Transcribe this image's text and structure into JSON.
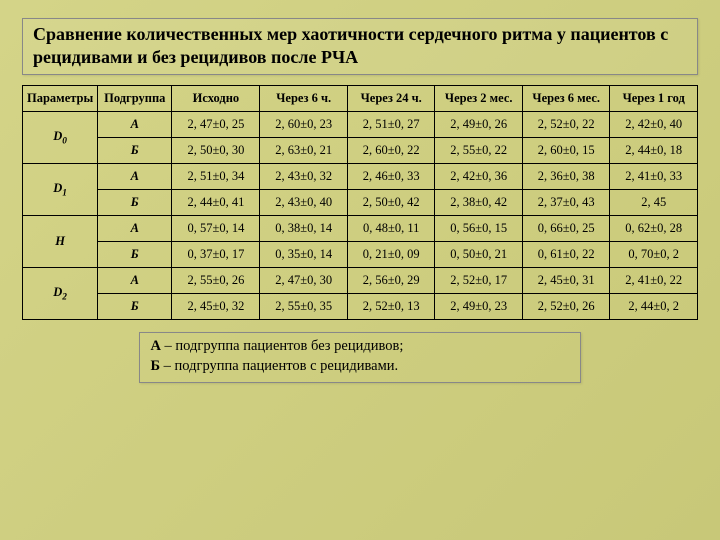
{
  "title": "Сравнение количественных мер хаотичности сердечного ритма у пациентов с рецидивами и без рецидивов после РЧА",
  "columns": [
    "Параметры",
    "Подгруппа",
    "Исходно",
    "Через 6 ч.",
    "Через 24 ч.",
    "Через 2 мес.",
    "Через 6 мес.",
    "Через 1 год"
  ],
  "params": [
    {
      "name": "D",
      "sub": "0",
      "groups": [
        {
          "g": "А",
          "v": [
            "2, 47±0, 25",
            "2, 60±0, 23",
            "2, 51±0, 27",
            "2, 49±0, 26",
            "2, 52±0, 22",
            "2, 42±0, 40"
          ]
        },
        {
          "g": "Б",
          "v": [
            "2, 50±0, 30",
            "2, 63±0, 21",
            "2, 60±0, 22",
            "2, 55±0, 22",
            "2, 60±0, 15",
            "2, 44±0, 18"
          ]
        }
      ]
    },
    {
      "name": "D",
      "sub": "1",
      "groups": [
        {
          "g": "А",
          "v": [
            "2, 51±0, 34",
            "2, 43±0, 32",
            "2, 46±0, 33",
            "2, 42±0, 36",
            "2, 36±0, 38",
            "2, 41±0, 33"
          ]
        },
        {
          "g": "Б",
          "v": [
            "2, 44±0, 41",
            "2, 43±0, 40",
            "2, 50±0, 42",
            "2, 38±0, 42",
            "2, 37±0, 43",
            "2, 45"
          ]
        }
      ]
    },
    {
      "name": "H",
      "sub": "",
      "groups": [
        {
          "g": "А",
          "v": [
            "0, 57±0, 14",
            "0, 38±0, 14",
            "0, 48±0, 11",
            "0, 56±0, 15",
            "0, 66±0, 25",
            "0, 62±0, 28"
          ]
        },
        {
          "g": "Б",
          "v": [
            "0, 37±0, 17",
            "0, 35±0, 14",
            "0, 21±0, 09",
            "0, 50±0, 21",
            "0, 61±0, 22",
            "0, 70±0, 2"
          ]
        }
      ]
    },
    {
      "name": "D",
      "sub": "2",
      "groups": [
        {
          "g": "А",
          "v": [
            "2, 55±0, 26",
            "2, 47±0, 30",
            "2, 56±0, 29",
            "2, 52±0, 17",
            "2, 45±0, 31",
            "2, 41±0, 22"
          ]
        },
        {
          "g": "Б",
          "v": [
            "2, 45±0, 32",
            "2, 55±0, 35",
            "2, 52±0, 13",
            "2, 49±0, 23",
            "2, 52±0, 26",
            "2, 44±0, 2"
          ]
        }
      ]
    }
  ],
  "legend": {
    "a_label": "А",
    "a_text": " – подгруппа пациентов без рецидивов;",
    "b_label": "Б",
    "b_text": " – подгруппа пациентов с рецидивами."
  },
  "style": {
    "background_gradient_from": "#d4d488",
    "background_gradient_to": "#c8c878",
    "border_color": "#000000",
    "title_fontsize": 18,
    "table_fontsize": 12.5,
    "legend_fontsize": 14.5,
    "font_family": "Times New Roman"
  }
}
